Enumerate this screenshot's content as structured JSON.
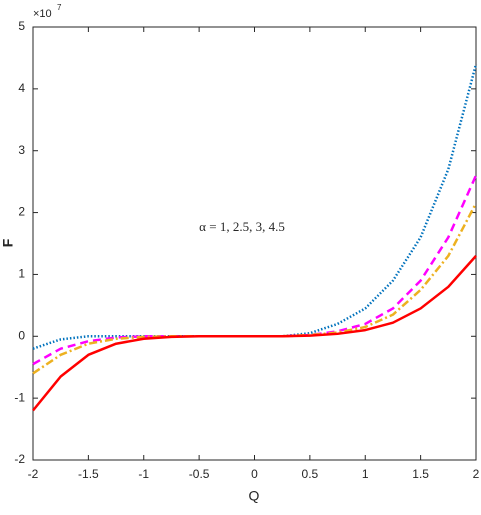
{
  "chart_data": {
    "type": "line",
    "x_label": "Q",
    "y_label": "F",
    "y_exponent": {
      "base": "×10",
      "power": "7"
    },
    "annotation": "α = 1, 2.5, 3, 4.5",
    "x": [
      -2,
      -1.75,
      -1.5,
      -1.25,
      -1,
      -0.75,
      -0.5,
      -0.25,
      0,
      0.25,
      0.5,
      0.75,
      1,
      1.25,
      1.5,
      1.75,
      2
    ],
    "series": [
      {
        "name": "α = 1",
        "color": "#0072bd",
        "style": "dotted",
        "values": [
          -0.2,
          -0.05,
          0,
          0,
          0,
          0,
          0,
          0,
          0,
          0,
          0.05,
          0.2,
          0.45,
          0.9,
          1.6,
          2.7,
          4.4
        ]
      },
      {
        "name": "α = 2.5",
        "color": "#ff00ff",
        "style": "dashed",
        "values": [
          -0.45,
          -0.2,
          -0.08,
          -0.02,
          0,
          0,
          0,
          0,
          0,
          0,
          0.02,
          0.08,
          0.2,
          0.45,
          0.9,
          1.6,
          2.6
        ]
      },
      {
        "name": "α = 3",
        "color": "#edb120",
        "style": "dashdot",
        "values": [
          -0.6,
          -0.3,
          -0.12,
          -0.04,
          -0.01,
          0,
          0,
          0,
          0,
          0,
          0.02,
          0.06,
          0.15,
          0.35,
          0.75,
          1.3,
          2.15
        ]
      },
      {
        "name": "α = 4.5",
        "color": "#ff0000",
        "style": "solid",
        "values": [
          -1.2,
          -0.65,
          -0.3,
          -0.12,
          -0.04,
          -0.01,
          0,
          0,
          0,
          0,
          0.01,
          0.04,
          0.1,
          0.22,
          0.45,
          0.8,
          1.3
        ]
      }
    ],
    "xlim": [
      -2,
      2
    ],
    "ylim": [
      -2,
      5
    ],
    "xticks": [
      -2,
      -1.5,
      -1,
      -0.5,
      0,
      0.5,
      1,
      1.5,
      2
    ],
    "yticks": [
      -2,
      -1,
      0,
      1,
      2,
      3,
      4,
      5
    ]
  }
}
